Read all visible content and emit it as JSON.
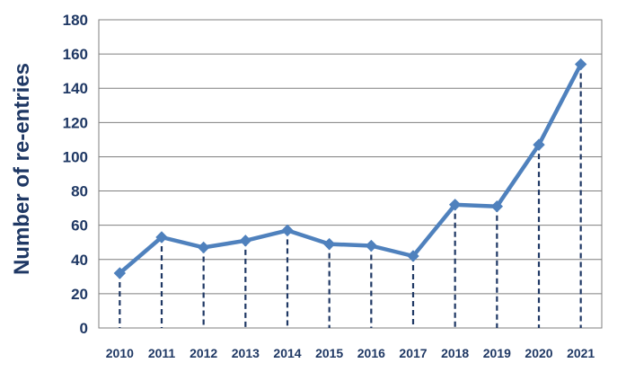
{
  "chart_data": {
    "type": "line",
    "title": "",
    "xlabel": "",
    "ylabel": "Number of re-entries",
    "categories": [
      "2010",
      "2011",
      "2012",
      "2013",
      "2014",
      "2015",
      "2016",
      "2017",
      "2018",
      "2019",
      "2020",
      "2021"
    ],
    "series": [
      {
        "values": [
          32,
          53,
          47,
          51,
          57,
          49,
          48,
          42,
          72,
          71,
          107,
          154
        ]
      }
    ],
    "ylim": [
      0,
      180
    ],
    "yticks": [
      0,
      20,
      40,
      60,
      80,
      100,
      120,
      140,
      160,
      180
    ],
    "grid": true,
    "legend": "none",
    "drop_lines": true,
    "colors": {
      "line": "#4f81bd",
      "marker": "#4f81bd",
      "drop_line": "#1f3864",
      "grid": "#7f7f7f",
      "text": "#1f3864"
    }
  }
}
